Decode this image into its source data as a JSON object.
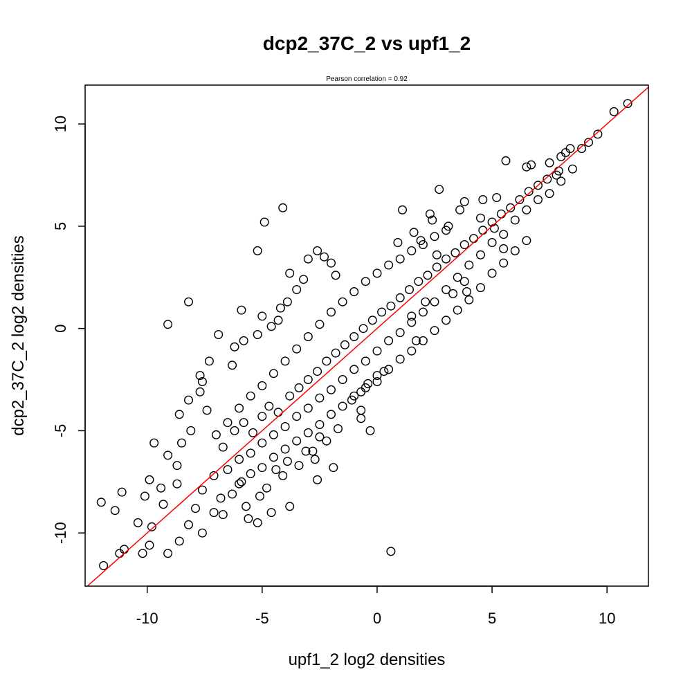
{
  "chart_data": {
    "type": "scatter",
    "title": "dcp2_37C_2 vs upf1_2",
    "subtitle": "Pearson correlation =  0.92",
    "xlabel": "upf1_2 log2 densities",
    "ylabel": "dcp2_37C_2 log2 densities",
    "xlim": [
      -12.7,
      11.8
    ],
    "ylim": [
      -12.6,
      11.9
    ],
    "x_ticks": [
      -10,
      -5,
      0,
      5,
      10
    ],
    "y_ticks": [
      -10,
      -5,
      0,
      5,
      10
    ],
    "x_tick_labels": [
      "-10",
      "-5",
      "0",
      "5",
      "10"
    ],
    "y_tick_labels": [
      "-10",
      "-5",
      "0",
      "5",
      "10"
    ],
    "grid": false,
    "reference_line": {
      "type": "y=x",
      "color": "#ff0000"
    },
    "point_color": "#000000",
    "points": [
      [
        10.9,
        11.0
      ],
      [
        10.3,
        10.6
      ],
      [
        9.6,
        9.5
      ],
      [
        9.2,
        9.1
      ],
      [
        8.9,
        8.8
      ],
      [
        8.4,
        8.8
      ],
      [
        8.2,
        8.6
      ],
      [
        8.0,
        8.4
      ],
      [
        8.5,
        7.8
      ],
      [
        7.9,
        7.7
      ],
      [
        7.5,
        8.1
      ],
      [
        5.6,
        8.2
      ],
      [
        6.5,
        7.9
      ],
      [
        6.7,
        8.0
      ],
      [
        2.7,
        6.8
      ],
      [
        5.2,
        6.4
      ],
      [
        4.6,
        6.3
      ],
      [
        3.8,
        6.2
      ],
      [
        3.6,
        5.8
      ],
      [
        1.1,
        5.8
      ],
      [
        2.3,
        5.6
      ],
      [
        2.4,
        5.3
      ],
      [
        3.1,
        5.0
      ],
      [
        4.5,
        5.4
      ],
      [
        5.1,
        4.9
      ],
      [
        5.5,
        3.9
      ],
      [
        1.6,
        4.7
      ],
      [
        0.9,
        4.2
      ],
      [
        1.9,
        4.3
      ],
      [
        2.6,
        3.6
      ],
      [
        3.8,
        2.3
      ],
      [
        3.9,
        1.8
      ],
      [
        3.3,
        1.7
      ],
      [
        2.1,
        1.3
      ],
      [
        1.5,
        0.6
      ],
      [
        1.7,
        -0.6
      ],
      [
        0.3,
        -2.1
      ],
      [
        0.0,
        -2.3
      ],
      [
        -0.4,
        -2.7
      ],
      [
        -0.7,
        -3.1
      ],
      [
        -1.1,
        -3.5
      ],
      [
        -0.7,
        -4.4
      ],
      [
        -0.7,
        -4.0
      ],
      [
        -0.3,
        -5.0
      ],
      [
        -1.7,
        -4.9
      ],
      [
        -2.5,
        -5.3
      ],
      [
        -2.2,
        -5.5
      ],
      [
        -2.8,
        -6.0
      ],
      [
        -2.7,
        -6.4
      ],
      [
        -1.9,
        -6.8
      ],
      [
        -2.6,
        -7.4
      ],
      [
        -3.8,
        -8.7
      ],
      [
        -4.1,
        -7.2
      ],
      [
        0.6,
        -10.9
      ],
      [
        -4.6,
        -9.0
      ],
      [
        -5.2,
        -9.5
      ],
      [
        -5.6,
        -9.3
      ],
      [
        -6.7,
        -9.1
      ],
      [
        -7.6,
        -10.0
      ],
      [
        -8.2,
        -9.6
      ],
      [
        -8.6,
        -10.4
      ],
      [
        -9.1,
        -11.0
      ],
      [
        -9.9,
        -10.6
      ],
      [
        -10.2,
        -11.0
      ],
      [
        -11.0,
        -10.8
      ],
      [
        -11.2,
        -11.0
      ],
      [
        -11.9,
        -11.6
      ],
      [
        -12.0,
        -8.5
      ],
      [
        -11.1,
        -8.0
      ],
      [
        -11.4,
        -8.9
      ],
      [
        -10.4,
        -9.5
      ],
      [
        -10.1,
        -8.2
      ],
      [
        -9.8,
        -9.7
      ],
      [
        -9.4,
        -7.8
      ],
      [
        -9.9,
        -7.4
      ],
      [
        -9.3,
        -8.6
      ],
      [
        -8.7,
        -7.6
      ],
      [
        -7.9,
        -8.8
      ],
      [
        -7.1,
        -9.0
      ],
      [
        -9.7,
        -5.6
      ],
      [
        -9.1,
        -6.2
      ],
      [
        -8.7,
        -6.7
      ],
      [
        -8.5,
        -5.6
      ],
      [
        -8.1,
        -5.0
      ],
      [
        -8.6,
        -4.2
      ],
      [
        -8.2,
        -3.5
      ],
      [
        -7.4,
        -4.0
      ],
      [
        -7.7,
        -3.1
      ],
      [
        -7.6,
        -2.6
      ],
      [
        -7.7,
        -2.3
      ],
      [
        -7.3,
        -1.6
      ],
      [
        -6.3,
        -1.8
      ],
      [
        -6.2,
        -0.9
      ],
      [
        -5.8,
        -0.6
      ],
      [
        -5.2,
        -0.3
      ],
      [
        -4.6,
        0.1
      ],
      [
        -4.3,
        0.4
      ],
      [
        -4.2,
        1.0
      ],
      [
        -3.9,
        1.3
      ],
      [
        -3.5,
        1.9
      ],
      [
        -3.2,
        2.4
      ],
      [
        -3.8,
        2.7
      ],
      [
        -3.0,
        3.4
      ],
      [
        -2.3,
        3.5
      ],
      [
        -2.6,
        3.8
      ],
      [
        -2.0,
        3.2
      ],
      [
        -1.8,
        2.6
      ],
      [
        -5.2,
        3.8
      ],
      [
        -4.9,
        5.2
      ],
      [
        -4.1,
        5.9
      ],
      [
        -5.9,
        0.9
      ],
      [
        -5.0,
        0.6
      ],
      [
        -6.9,
        -0.3
      ],
      [
        -9.1,
        0.2
      ],
      [
        -8.2,
        1.3
      ],
      [
        -7.6,
        -7.9
      ],
      [
        -7.1,
        -7.2
      ],
      [
        -6.8,
        -8.3
      ],
      [
        -6.3,
        -8.1
      ],
      [
        -5.9,
        -7.5
      ],
      [
        -5.7,
        -8.7
      ],
      [
        -5.1,
        -8.2
      ],
      [
        -4.8,
        -7.8
      ],
      [
        -4.4,
        -6.9
      ],
      [
        -3.9,
        -6.5
      ],
      [
        -3.4,
        -6.7
      ],
      [
        -3.1,
        -6.0
      ],
      [
        -6.7,
        -5.8
      ],
      [
        -6.2,
        -5.0
      ],
      [
        -5.8,
        -4.6
      ],
      [
        -5.4,
        -5.1
      ],
      [
        -5.0,
        -4.3
      ],
      [
        -4.7,
        -3.8
      ],
      [
        -4.3,
        -4.1
      ],
      [
        -3.8,
        -3.3
      ],
      [
        -3.4,
        -2.9
      ],
      [
        -3.0,
        -2.5
      ],
      [
        -2.6,
        -2.1
      ],
      [
        -2.2,
        -1.6
      ],
      [
        -1.8,
        -1.2
      ],
      [
        -1.4,
        -0.8
      ],
      [
        -1.0,
        -0.4
      ],
      [
        -0.6,
        0.0
      ],
      [
        -0.2,
        0.4
      ],
      [
        0.2,
        0.8
      ],
      [
        0.6,
        1.1
      ],
      [
        1.0,
        1.5
      ],
      [
        1.4,
        1.9
      ],
      [
        1.8,
        2.3
      ],
      [
        2.2,
        2.6
      ],
      [
        2.6,
        3.0
      ],
      [
        3.0,
        3.4
      ],
      [
        3.4,
        3.7
      ],
      [
        3.8,
        4.1
      ],
      [
        4.2,
        4.4
      ],
      [
        4.6,
        4.8
      ],
      [
        5.0,
        5.2
      ],
      [
        5.4,
        5.6
      ],
      [
        5.8,
        5.9
      ],
      [
        6.2,
        6.3
      ],
      [
        6.6,
        6.7
      ],
      [
        7.0,
        7.0
      ],
      [
        7.4,
        7.3
      ],
      [
        7.8,
        7.5
      ],
      [
        -6.5,
        -6.9
      ],
      [
        -6.0,
        -6.4
      ],
      [
        -5.5,
        -6.1
      ],
      [
        -5.0,
        -5.6
      ],
      [
        -4.5,
        -5.2
      ],
      [
        -4.0,
        -4.8
      ],
      [
        -3.5,
        -4.3
      ],
      [
        -3.0,
        -3.9
      ],
      [
        -2.5,
        -3.4
      ],
      [
        -2.0,
        -3.0
      ],
      [
        -1.5,
        -2.5
      ],
      [
        -1.0,
        -2.0
      ],
      [
        -0.5,
        -1.6
      ],
      [
        0.0,
        -1.1
      ],
      [
        0.5,
        -0.6
      ],
      [
        1.0,
        -0.2
      ],
      [
        1.5,
        0.3
      ],
      [
        2.0,
        0.8
      ],
      [
        2.5,
        1.3
      ],
      [
        3.0,
        1.9
      ],
      [
        3.5,
        2.5
      ],
      [
        4.0,
        3.1
      ],
      [
        4.5,
        3.6
      ],
      [
        5.0,
        4.2
      ],
      [
        5.5,
        4.6
      ],
      [
        6.0,
        5.3
      ],
      [
        6.5,
        5.8
      ],
      [
        7.0,
        6.3
      ],
      [
        7.5,
        6.6
      ],
      [
        8.0,
        7.2
      ],
      [
        -7.0,
        -5.2
      ],
      [
        -6.5,
        -4.6
      ],
      [
        -6.0,
        -3.9
      ],
      [
        -5.5,
        -3.3
      ],
      [
        -5.0,
        -2.8
      ],
      [
        -4.5,
        -2.2
      ],
      [
        -4.0,
        -1.6
      ],
      [
        -3.5,
        -1.0
      ],
      [
        -3.0,
        -0.4
      ],
      [
        -2.5,
        0.2
      ],
      [
        -2.0,
        0.8
      ],
      [
        -1.5,
        1.3
      ],
      [
        -1.0,
        1.8
      ],
      [
        -0.5,
        2.3
      ],
      [
        0.0,
        2.7
      ],
      [
        0.5,
        3.1
      ],
      [
        1.0,
        3.4
      ],
      [
        1.5,
        3.8
      ],
      [
        2.0,
        4.1
      ],
      [
        2.5,
        4.5
      ],
      [
        3.0,
        4.8
      ],
      [
        -6.0,
        -7.6
      ],
      [
        -5.5,
        -7.1
      ],
      [
        -5.0,
        -6.8
      ],
      [
        -4.5,
        -6.3
      ],
      [
        -4.0,
        -5.9
      ],
      [
        -3.5,
        -5.5
      ],
      [
        -3.0,
        -5.1
      ],
      [
        -2.5,
        -4.7
      ],
      [
        -2.0,
        -4.2
      ],
      [
        -1.5,
        -3.8
      ],
      [
        -1.0,
        -3.3
      ],
      [
        -0.5,
        -2.9
      ],
      [
        0.0,
        -2.6
      ],
      [
        0.5,
        -2.0
      ],
      [
        1.0,
        -1.5
      ],
      [
        1.5,
        -1.1
      ],
      [
        2.0,
        -0.6
      ],
      [
        2.5,
        -0.1
      ],
      [
        3.0,
        0.4
      ],
      [
        3.5,
        0.9
      ],
      [
        4.0,
        1.4
      ],
      [
        4.5,
        2.0
      ],
      [
        5.0,
        2.7
      ],
      [
        5.5,
        3.2
      ],
      [
        6.0,
        3.8
      ],
      [
        6.5,
        4.3
      ]
    ]
  }
}
